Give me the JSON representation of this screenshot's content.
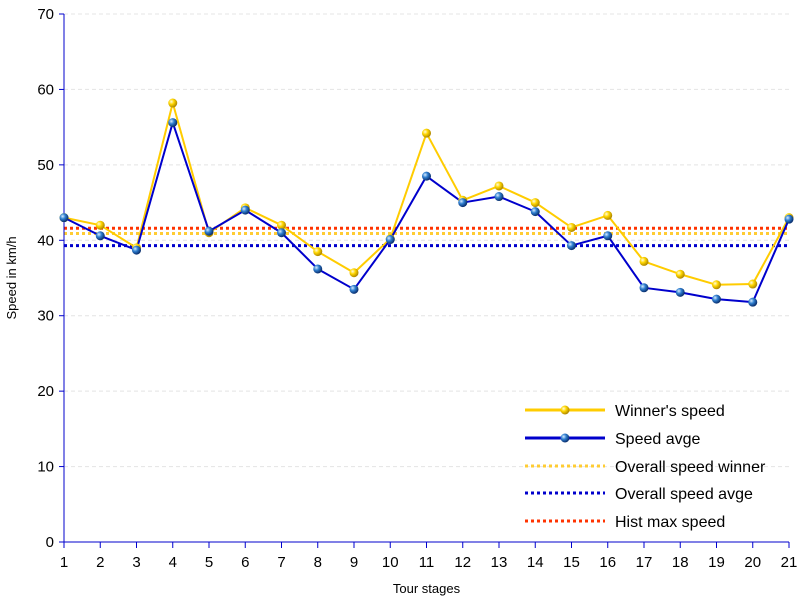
{
  "chart_data": {
    "type": "line",
    "xlabel": "Tour stages",
    "ylabel": "Speed in km/h",
    "x": [
      1,
      2,
      3,
      4,
      5,
      6,
      7,
      8,
      9,
      10,
      11,
      12,
      13,
      14,
      15,
      16,
      17,
      18,
      19,
      20,
      21
    ],
    "ylim": [
      0,
      70
    ],
    "yticks": [
      0,
      10,
      20,
      30,
      40,
      50,
      60,
      70
    ],
    "grid": "horizontal dashed",
    "legend_position": "bottom-right",
    "series": [
      {
        "name": "Winner's speed",
        "color": "#ffcc00",
        "marker": "sphere",
        "values": [
          43.0,
          42.0,
          39.0,
          58.2,
          41.0,
          44.3,
          42.0,
          38.5,
          35.7,
          40.2,
          54.2,
          45.3,
          47.2,
          45.0,
          41.7,
          43.3,
          37.2,
          35.5,
          34.1,
          34.2,
          43.0
        ]
      },
      {
        "name": "Speed avge",
        "color": "#0000cc",
        "marker": "sphere",
        "values": [
          43.0,
          40.6,
          38.7,
          55.6,
          41.2,
          44.0,
          41.0,
          36.2,
          33.5,
          40.1,
          48.5,
          45.0,
          45.8,
          43.8,
          39.3,
          40.6,
          33.7,
          33.1,
          32.2,
          31.8,
          42.8
        ]
      }
    ],
    "reference_lines": [
      {
        "name": "Overall speed winner",
        "color": "#ffcc33",
        "value": 40.9,
        "style": "dotted"
      },
      {
        "name": "Overall speed avge",
        "color": "#0000cc",
        "value": 39.3,
        "style": "dotted"
      },
      {
        "name": "Hist max speed",
        "color": "#ff3300",
        "value": 41.6,
        "style": "dotted"
      }
    ]
  }
}
